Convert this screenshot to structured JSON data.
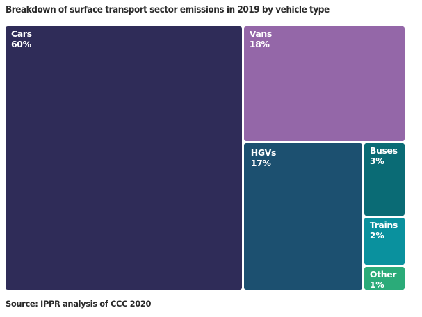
{
  "chart_data": {
    "type": "treemap",
    "title": "Breakdown of surface transport sector emissions in 2019 by vehicle type",
    "source": "Source: IPPR analysis of CCC 2020",
    "unit": "%",
    "items": [
      {
        "name": "Cars",
        "value": 60,
        "label": "60%",
        "color": "#2f2c58"
      },
      {
        "name": "Vans",
        "value": 18,
        "label": "18%",
        "color": "#9467a8"
      },
      {
        "name": "HGVs",
        "value": 17,
        "label": "17%",
        "color": "#1c5070"
      },
      {
        "name": "Buses",
        "value": 3,
        "label": "3%",
        "color": "#0a6b75"
      },
      {
        "name": "Trains",
        "value": 2,
        "label": "2%",
        "color": "#0a919e"
      },
      {
        "name": "Other",
        "value": 1,
        "label": "1%",
        "color": "#2bab79"
      }
    ]
  }
}
